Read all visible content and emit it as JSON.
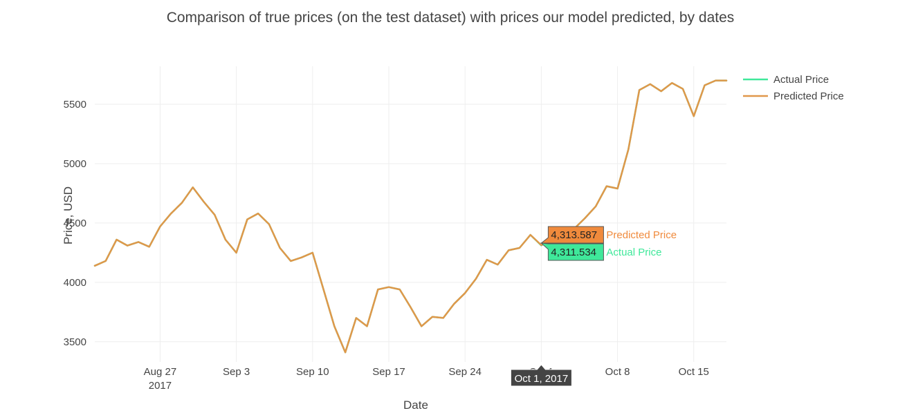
{
  "chart_data": {
    "type": "line",
    "title": "Comparison of true prices (on the test dataset) with prices our model predicted, by dates",
    "xlabel": "Date",
    "ylabel": "Price, USD",
    "xlim": [
      "2017-08-21",
      "2017-10-18"
    ],
    "ylim": [
      3330,
      5820
    ],
    "grid": true,
    "legend_position": "top-right",
    "x_ticks": [
      {
        "date": "2017-08-27",
        "label": "Aug 27",
        "sublabel": "2017"
      },
      {
        "date": "2017-09-03",
        "label": "Sep 3",
        "sublabel": ""
      },
      {
        "date": "2017-09-10",
        "label": "Sep 10",
        "sublabel": ""
      },
      {
        "date": "2017-09-17",
        "label": "Sep 17",
        "sublabel": ""
      },
      {
        "date": "2017-09-24",
        "label": "Sep 24",
        "sublabel": ""
      },
      {
        "date": "2017-10-01",
        "label": "Oct 1",
        "sublabel": ""
      },
      {
        "date": "2017-10-08",
        "label": "Oct 8",
        "sublabel": ""
      },
      {
        "date": "2017-10-15",
        "label": "Oct 15",
        "sublabel": ""
      }
    ],
    "y_ticks": [
      3500,
      4000,
      4500,
      5000,
      5500
    ],
    "x": [
      "2017-08-21",
      "2017-08-22",
      "2017-08-23",
      "2017-08-24",
      "2017-08-25",
      "2017-08-26",
      "2017-08-27",
      "2017-08-28",
      "2017-08-29",
      "2017-08-30",
      "2017-08-31",
      "2017-09-01",
      "2017-09-02",
      "2017-09-03",
      "2017-09-04",
      "2017-09-05",
      "2017-09-06",
      "2017-09-07",
      "2017-09-08",
      "2017-09-09",
      "2017-09-10",
      "2017-09-11",
      "2017-09-12",
      "2017-09-13",
      "2017-09-14",
      "2017-09-15",
      "2017-09-16",
      "2017-09-17",
      "2017-09-18",
      "2017-09-19",
      "2017-09-20",
      "2017-09-21",
      "2017-09-22",
      "2017-09-23",
      "2017-09-24",
      "2017-09-25",
      "2017-09-26",
      "2017-09-27",
      "2017-09-28",
      "2017-09-29",
      "2017-09-30",
      "2017-10-01",
      "2017-10-02",
      "2017-10-03",
      "2017-10-04",
      "2017-10-05",
      "2017-10-06",
      "2017-10-07",
      "2017-10-08",
      "2017-10-09",
      "2017-10-10",
      "2017-10-11",
      "2017-10-12",
      "2017-10-13",
      "2017-10-14",
      "2017-10-15",
      "2017-10-16",
      "2017-10-17",
      "2017-10-18"
    ],
    "series": [
      {
        "name": "Actual Price",
        "color": "#3fe89a",
        "values": [
          4140,
          4180,
          4360,
          4310,
          4340,
          4300,
          4470,
          4580,
          4670,
          4800,
          4680,
          4570,
          4360,
          4250,
          4530,
          4580,
          4490,
          4290,
          4180,
          4210,
          4250,
          3940,
          3630,
          3410,
          3700,
          3630,
          3940,
          3960,
          3940,
          3790,
          3630,
          3710,
          3700,
          3820,
          3910,
          4030,
          4190,
          4150,
          4270,
          4290,
          4400,
          4311.534,
          4360,
          4390,
          4450,
          4540,
          4640,
          4810,
          4790,
          5120,
          5620,
          5670,
          5610,
          5680,
          5630,
          5400,
          5660,
          5700,
          5700
        ]
      },
      {
        "name": "Predicted Price",
        "color": "#e0974a",
        "values": [
          4140,
          4180,
          4360,
          4310,
          4340,
          4300,
          4470,
          4580,
          4670,
          4800,
          4680,
          4570,
          4360,
          4250,
          4530,
          4580,
          4490,
          4290,
          4180,
          4210,
          4250,
          3940,
          3630,
          3410,
          3700,
          3630,
          3940,
          3960,
          3940,
          3790,
          3630,
          3710,
          3700,
          3820,
          3910,
          4030,
          4190,
          4150,
          4270,
          4290,
          4400,
          4313.587,
          4360,
          4390,
          4450,
          4540,
          4640,
          4810,
          4790,
          5120,
          5620,
          5670,
          5610,
          5680,
          5630,
          5400,
          5660,
          5700,
          5700
        ]
      }
    ],
    "hover": {
      "date_label": "Oct 1, 2017",
      "predicted_value": "4,313.587",
      "predicted_name": "Predicted Price",
      "predicted_color": "#f08a3c",
      "actual_value": "4,311.534",
      "actual_name": "Actual Price",
      "actual_color": "#3fe89a"
    }
  }
}
